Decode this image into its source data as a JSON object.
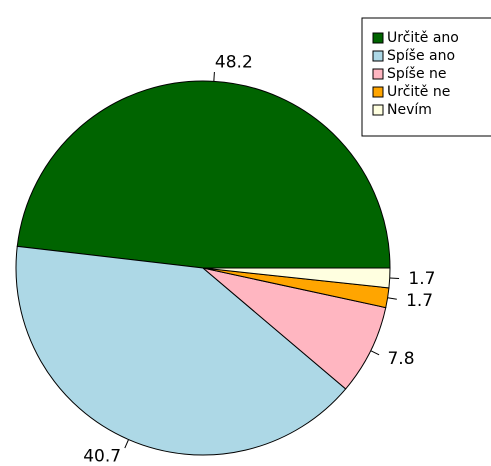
{
  "chart_data": {
    "type": "pie",
    "categories": [
      "Určitě ano",
      "Spíše ano",
      "Spíše ne",
      "Určitě ne",
      "Nevím"
    ],
    "values": [
      48.2,
      40.7,
      7.8,
      1.7,
      1.7
    ],
    "colors": [
      "#006400",
      "#add8e6",
      "#ffb6c1",
      "#ffa500",
      "#ffffe0"
    ],
    "legend": "top-right"
  }
}
